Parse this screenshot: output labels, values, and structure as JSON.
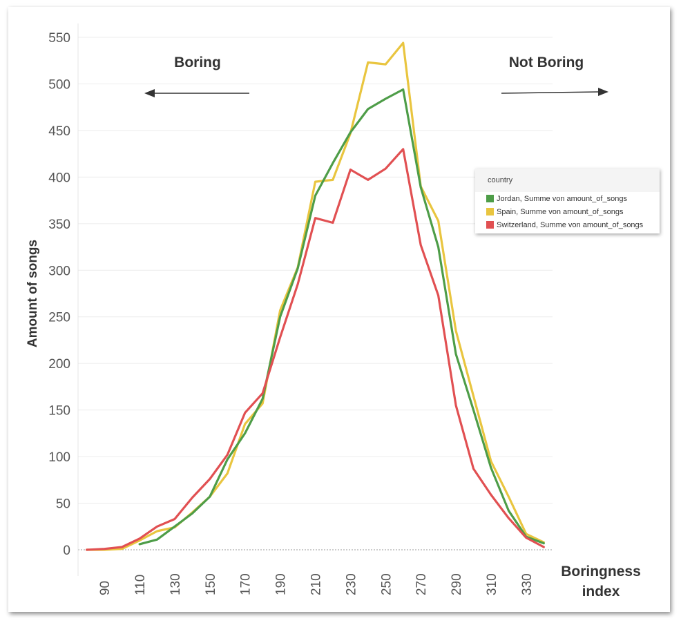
{
  "chart_data": {
    "type": "line",
    "title": "",
    "ylabel": "Amount of songs",
    "xlabel": "Boringness index",
    "xlabel_lines": [
      "Boringness",
      "index"
    ],
    "ylim": [
      0,
      550
    ],
    "yticks": [
      0,
      50,
      100,
      150,
      200,
      250,
      300,
      350,
      400,
      450,
      500,
      550
    ],
    "xlim": [
      75,
      345
    ],
    "xticks": [
      90,
      110,
      130,
      150,
      170,
      190,
      210,
      230,
      250,
      270,
      290,
      310,
      330
    ],
    "grid": true,
    "legend_position": "right",
    "legend_title": "country",
    "annotations": {
      "left_text": "Boring",
      "right_text": "Not Boring"
    },
    "series": [
      {
        "name": "Spain, Summe von amount_of_songs",
        "color": "#e9c53f",
        "x": [
          80,
          90,
          100,
          110,
          120,
          130,
          140,
          150,
          160,
          170,
          180,
          190,
          200,
          210,
          220,
          230,
          240,
          250,
          260,
          270,
          280,
          290,
          300,
          310,
          320,
          330,
          340
        ],
        "values": [
          0,
          0,
          1,
          10,
          20,
          24,
          40,
          57,
          82,
          135,
          157,
          257,
          303,
          395,
          397,
          447,
          523,
          521,
          544,
          390,
          353,
          235,
          165,
          95,
          57,
          17,
          8
        ]
      },
      {
        "name": "Jordan, Summe von amount_of_songs",
        "color": "#4e9d48",
        "x": [
          110,
          120,
          130,
          140,
          150,
          160,
          170,
          180,
          190,
          200,
          210,
          220,
          230,
          240,
          250,
          260,
          270,
          280,
          290,
          300,
          310,
          320,
          330,
          340
        ],
        "values": [
          6,
          11,
          25,
          39,
          57,
          97,
          125,
          162,
          250,
          302,
          380,
          415,
          448,
          473,
          484,
          494,
          389,
          325,
          210,
          150,
          88,
          42,
          14,
          7
        ]
      },
      {
        "name": "Switzerland, Summe von amount_of_songs",
        "color": "#e15052",
        "x": [
          80,
          90,
          100,
          110,
          120,
          130,
          140,
          150,
          160,
          170,
          180,
          190,
          200,
          210,
          220,
          230,
          240,
          250,
          260,
          270,
          280,
          290,
          300,
          310,
          320,
          330,
          340
        ],
        "values": [
          0,
          1,
          3,
          12,
          25,
          33,
          56,
          76,
          102,
          147,
          168,
          228,
          285,
          356,
          351,
          408,
          397,
          409,
          430,
          327,
          273,
          155,
          87,
          59,
          34,
          13,
          3
        ]
      }
    ],
    "legend_order": [
      1,
      0,
      2
    ]
  }
}
